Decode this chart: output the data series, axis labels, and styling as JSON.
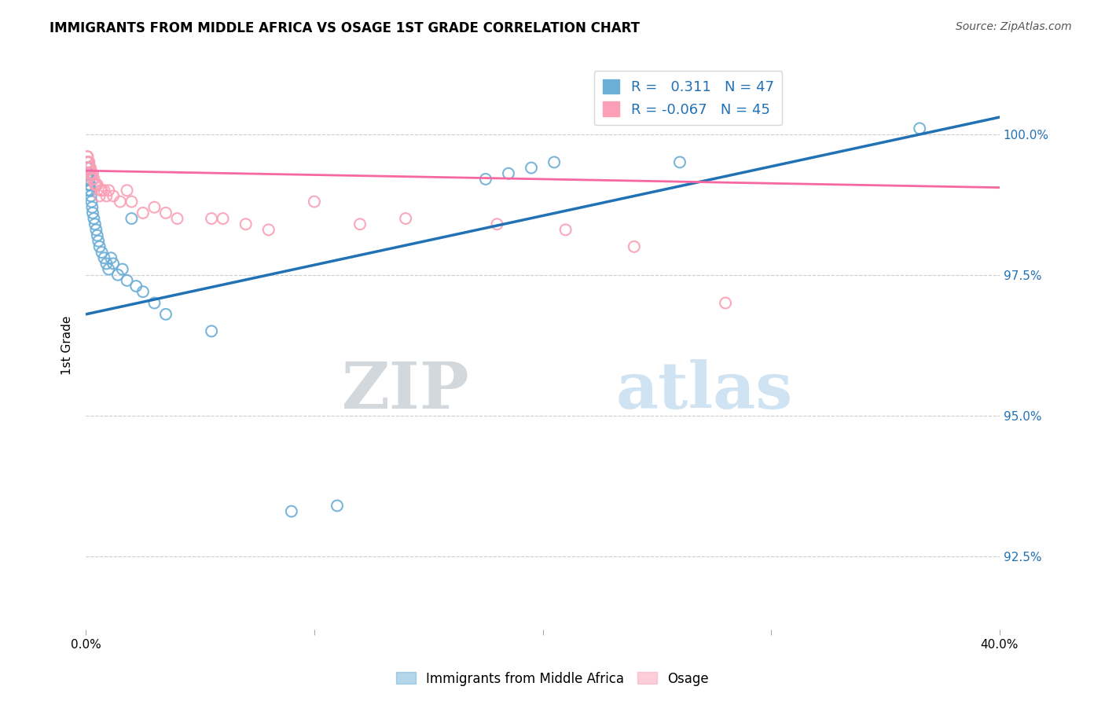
{
  "title": "IMMIGRANTS FROM MIDDLE AFRICA VS OSAGE 1ST GRADE CORRELATION CHART",
  "source": "Source: ZipAtlas.com",
  "ylabel": "1st Grade",
  "ytick_labels": [
    "92.5%",
    "95.0%",
    "97.5%",
    "100.0%"
  ],
  "ytick_values": [
    92.5,
    95.0,
    97.5,
    100.0
  ],
  "xmin": 0.0,
  "xmax": 40.0,
  "ymin": 91.2,
  "ymax": 101.3,
  "legend_blue_r": "0.311",
  "legend_blue_n": "47",
  "legend_pink_r": "-0.067",
  "legend_pink_n": "45",
  "blue_color": "#6baed6",
  "pink_color": "#fa9fb5",
  "blue_line_color": "#2171b5",
  "pink_line_color": "#f768a1",
  "watermark_zip": "ZIP",
  "watermark_atlas": "atlas",
  "blue_scatter_x": [
    0.05,
    0.07,
    0.08,
    0.09,
    0.1,
    0.11,
    0.12,
    0.13,
    0.14,
    0.15,
    0.16,
    0.18,
    0.2,
    0.22,
    0.25,
    0.28,
    0.3,
    0.35,
    0.4,
    0.45,
    0.5,
    0.55,
    0.6,
    0.7,
    0.8,
    0.9,
    1.0,
    1.1,
    1.2,
    1.4,
    1.6,
    1.8,
    2.0,
    2.2,
    2.5,
    3.0,
    3.5,
    5.5,
    9.0,
    11.0,
    17.5,
    18.5,
    19.5,
    20.5,
    26.0,
    36.5,
    0.06
  ],
  "blue_scatter_y": [
    99.4,
    99.3,
    99.5,
    99.2,
    99.1,
    99.3,
    99.4,
    99.1,
    99.2,
    99.0,
    99.2,
    99.1,
    99.0,
    98.9,
    98.8,
    98.7,
    98.6,
    98.5,
    98.4,
    98.3,
    98.2,
    98.1,
    98.0,
    97.9,
    97.8,
    97.7,
    97.6,
    97.8,
    97.7,
    97.5,
    97.6,
    97.4,
    98.5,
    97.3,
    97.2,
    97.0,
    96.8,
    96.5,
    93.3,
    93.4,
    99.2,
    99.3,
    99.4,
    99.5,
    99.5,
    100.1,
    99.0
  ],
  "pink_scatter_x": [
    0.05,
    0.07,
    0.08,
    0.1,
    0.12,
    0.14,
    0.16,
    0.18,
    0.2,
    0.25,
    0.3,
    0.35,
    0.4,
    0.5,
    0.6,
    0.7,
    0.8,
    1.0,
    1.2,
    1.5,
    2.0,
    2.5,
    3.0,
    4.0,
    5.5,
    7.0,
    10.0,
    14.0,
    18.0,
    21.0,
    24.0,
    0.09,
    0.11,
    0.13,
    0.15,
    0.28,
    0.45,
    0.65,
    0.9,
    1.8,
    3.5,
    6.0,
    8.0,
    12.0,
    28.0
  ],
  "pink_scatter_y": [
    99.6,
    99.5,
    99.6,
    99.5,
    99.4,
    99.5,
    99.4,
    99.3,
    99.4,
    99.3,
    99.3,
    99.2,
    99.1,
    99.1,
    98.9,
    99.0,
    99.0,
    99.0,
    98.9,
    98.8,
    98.8,
    98.6,
    98.7,
    98.5,
    98.5,
    98.4,
    98.8,
    98.5,
    98.4,
    98.3,
    98.0,
    99.5,
    99.4,
    99.5,
    99.4,
    99.2,
    99.1,
    99.0,
    98.9,
    99.0,
    98.6,
    98.5,
    98.3,
    98.4,
    97.0
  ],
  "blue_line_x": [
    0.0,
    40.0
  ],
  "blue_line_y": [
    96.8,
    100.3
  ],
  "pink_line_x": [
    0.0,
    40.0
  ],
  "pink_line_y": [
    99.35,
    99.05
  ]
}
